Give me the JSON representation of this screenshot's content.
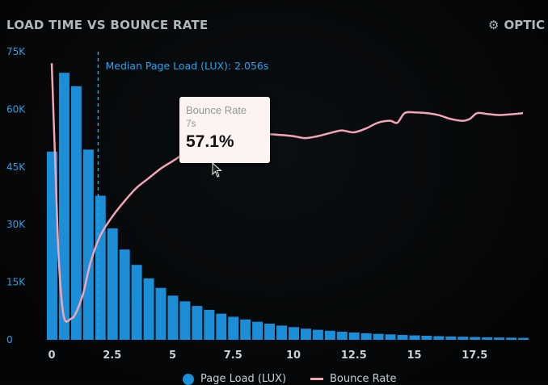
{
  "header": {
    "title": "LOAD TIME VS BOUNCE RATE",
    "options_label": "OPTIC",
    "options_icon": "gear-icon"
  },
  "median": {
    "label": "Median Page Load (LUX): 2.056s",
    "x": 2.056
  },
  "tooltip": {
    "title": "Bounce Rate",
    "x_label": "7s",
    "value": "57.1%"
  },
  "colors": {
    "bars": "#1a8fd8",
    "line": "#f2a5b5",
    "axis_text_y": "#2aa3e8",
    "median": "#2aa3e8"
  },
  "chart_data": {
    "type": "bar",
    "title": "LOAD TIME VS BOUNCE RATE",
    "xlim": [
      0,
      20
    ],
    "ylim": [
      0,
      75000
    ],
    "x_ticks": [
      "0",
      "2.5",
      "5",
      "7.5",
      "10",
      "12.5",
      "15",
      "17.5"
    ],
    "x_tick_values": [
      0,
      2.5,
      5,
      7.5,
      10,
      12.5,
      15,
      17.5
    ],
    "y_ticks": [
      "0",
      "15K",
      "30K",
      "45K",
      "60K",
      "75K"
    ],
    "y_tick_values": [
      0,
      15000,
      30000,
      45000,
      60000,
      75000
    ],
    "grid": false,
    "legend_position": "bottom",
    "series": [
      {
        "name": "Page Load (LUX)",
        "type": "bar",
        "bin_width": 0.5,
        "x": [
          0,
          0.5,
          1,
          1.5,
          2,
          2.5,
          3,
          3.5,
          4,
          4.5,
          5,
          5.5,
          6,
          6.5,
          7,
          7.5,
          8,
          8.5,
          9,
          9.5,
          10,
          10.5,
          11,
          11.5,
          12,
          12.5,
          13,
          13.5,
          14,
          14.5,
          15,
          15.5,
          16,
          16.5,
          17,
          17.5,
          18,
          18.5,
          19,
          19.5
        ],
        "values": [
          49000,
          69500,
          66000,
          49500,
          37500,
          29000,
          23500,
          19500,
          16000,
          13500,
          11500,
          10000,
          8800,
          7800,
          6800,
          6000,
          5300,
          4700,
          4200,
          3700,
          3300,
          2900,
          2600,
          2350,
          2100,
          1900,
          1700,
          1550,
          1400,
          1250,
          1150,
          1050,
          950,
          870,
          800,
          730,
          660,
          600,
          550,
          500
        ]
      },
      {
        "name": "Bounce Rate",
        "type": "line",
        "x": [
          0,
          0.15,
          0.3,
          0.5,
          0.8,
          1.0,
          1.3,
          1.6,
          2.0,
          2.5,
          3.0,
          3.5,
          4.0,
          4.5,
          5.0,
          5.5,
          6.0,
          6.5,
          7.0,
          7.5,
          8.0,
          8.5,
          9.0,
          9.5,
          10.0,
          10.5,
          11.0,
          11.5,
          12.0,
          12.5,
          13.0,
          13.5,
          14.0,
          14.3,
          14.6,
          15.0,
          15.5,
          16.0,
          16.5,
          17.0,
          17.3,
          17.6,
          18.0,
          18.5,
          19.0,
          19.5
        ],
        "values": [
          72000,
          45000,
          20000,
          6000,
          5500,
          7000,
          12000,
          20000,
          27000,
          32000,
          36000,
          39500,
          42000,
          44500,
          46500,
          48500,
          50000,
          51500,
          52300,
          53000,
          53200,
          53200,
          53500,
          53300,
          53000,
          52500,
          53000,
          53800,
          54500,
          54000,
          55000,
          56500,
          57000,
          56500,
          59000,
          59200,
          59000,
          58500,
          57500,
          57000,
          57500,
          59000,
          58800,
          58500,
          58700,
          59000
        ]
      }
    ]
  },
  "legend": {
    "items": [
      {
        "label": "Page Load (LUX)"
      },
      {
        "label": "Bounce Rate"
      }
    ]
  }
}
